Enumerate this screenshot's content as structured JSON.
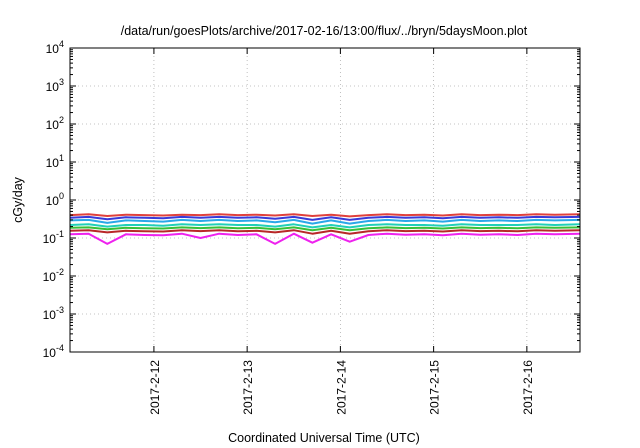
{
  "chart_data": {
    "type": "line",
    "title": "/data/run/goesPlots/archive/2017-02-16/13:00/flux/../bryn/5daysMoon.plot",
    "xlabel": "Coordinated Universal Time (UTC)",
    "ylabel": "cGy/day",
    "yscale": "log",
    "ylim": [
      0.0001,
      10000
    ],
    "xlim": [
      11.1,
      16.57
    ],
    "x_unit": "day of February 2017",
    "grid": true,
    "legend": "none",
    "x_ticks": [
      {
        "value": 12,
        "label": "2017-2-12"
      },
      {
        "value": 13,
        "label": "2017-2-13"
      },
      {
        "value": 14,
        "label": "2017-2-14"
      },
      {
        "value": 15,
        "label": "2017-2-15"
      },
      {
        "value": 16,
        "label": "2017-2-16"
      }
    ],
    "y_ticks": [
      {
        "value": 0.0001,
        "base": "10",
        "exp": "-4"
      },
      {
        "value": 0.001,
        "base": "10",
        "exp": "-3"
      },
      {
        "value": 0.01,
        "base": "10",
        "exp": "-2"
      },
      {
        "value": 0.1,
        "base": "10",
        "exp": "-1"
      },
      {
        "value": 1,
        "base": "10",
        "exp": "0"
      },
      {
        "value": 10,
        "base": "10",
        "exp": "1"
      },
      {
        "value": 100,
        "base": "10",
        "exp": "2"
      },
      {
        "value": 1000,
        "base": "10",
        "exp": "3"
      },
      {
        "value": 10000,
        "base": "10",
        "exp": "4"
      }
    ],
    "x": [
      11.1,
      11.3,
      11.5,
      11.7,
      11.9,
      12.1,
      12.3,
      12.5,
      12.7,
      12.9,
      13.1,
      13.3,
      13.5,
      13.7,
      13.9,
      14.1,
      14.3,
      14.5,
      14.7,
      14.9,
      15.1,
      15.3,
      15.5,
      15.7,
      15.9,
      16.1,
      16.3,
      16.57
    ],
    "series": [
      {
        "color": "#e0403c",
        "values": [
          0.4,
          0.42,
          0.38,
          0.41,
          0.4,
          0.39,
          0.41,
          0.4,
          0.42,
          0.4,
          0.41,
          0.39,
          0.42,
          0.38,
          0.41,
          0.37,
          0.4,
          0.42,
          0.4,
          0.41,
          0.39,
          0.42,
          0.4,
          0.41,
          0.4,
          0.42,
          0.41,
          0.42
        ]
      },
      {
        "color": "#3a3ad8",
        "values": [
          0.34,
          0.36,
          0.31,
          0.35,
          0.34,
          0.33,
          0.36,
          0.34,
          0.36,
          0.34,
          0.35,
          0.32,
          0.36,
          0.3,
          0.35,
          0.3,
          0.34,
          0.36,
          0.34,
          0.35,
          0.33,
          0.36,
          0.34,
          0.35,
          0.34,
          0.36,
          0.35,
          0.36
        ]
      },
      {
        "color": "#2aa8e8",
        "values": [
          0.29,
          0.3,
          0.25,
          0.29,
          0.28,
          0.27,
          0.3,
          0.28,
          0.3,
          0.28,
          0.29,
          0.26,
          0.3,
          0.24,
          0.29,
          0.24,
          0.28,
          0.3,
          0.28,
          0.29,
          0.27,
          0.3,
          0.28,
          0.29,
          0.28,
          0.3,
          0.29,
          0.3
        ]
      },
      {
        "color": "#20d0b8",
        "values": [
          0.22,
          0.23,
          0.2,
          0.22,
          0.22,
          0.21,
          0.23,
          0.22,
          0.23,
          0.22,
          0.22,
          0.2,
          0.23,
          0.19,
          0.22,
          0.19,
          0.22,
          0.23,
          0.22,
          0.22,
          0.21,
          0.23,
          0.22,
          0.22,
          0.22,
          0.23,
          0.22,
          0.23
        ]
      },
      {
        "color": "#38c038",
        "values": [
          0.185,
          0.19,
          0.17,
          0.185,
          0.18,
          0.178,
          0.19,
          0.182,
          0.19,
          0.18,
          0.185,
          0.17,
          0.19,
          0.16,
          0.185,
          0.16,
          0.18,
          0.19,
          0.182,
          0.185,
          0.178,
          0.19,
          0.182,
          0.185,
          0.18,
          0.19,
          0.185,
          0.19
        ]
      },
      {
        "color": "#b82828",
        "values": [
          0.155,
          0.16,
          0.14,
          0.155,
          0.15,
          0.148,
          0.16,
          0.152,
          0.16,
          0.15,
          0.155,
          0.14,
          0.16,
          0.13,
          0.155,
          0.13,
          0.15,
          0.16,
          0.152,
          0.155,
          0.148,
          0.16,
          0.152,
          0.155,
          0.15,
          0.16,
          0.155,
          0.16
        ]
      },
      {
        "color": "#ee22ee",
        "values": [
          0.125,
          0.13,
          0.07,
          0.125,
          0.12,
          0.118,
          0.13,
          0.1,
          0.13,
          0.12,
          0.125,
          0.07,
          0.13,
          0.075,
          0.125,
          0.08,
          0.12,
          0.13,
          0.122,
          0.125,
          0.118,
          0.13,
          0.122,
          0.125,
          0.12,
          0.13,
          0.125,
          0.13
        ]
      }
    ]
  }
}
